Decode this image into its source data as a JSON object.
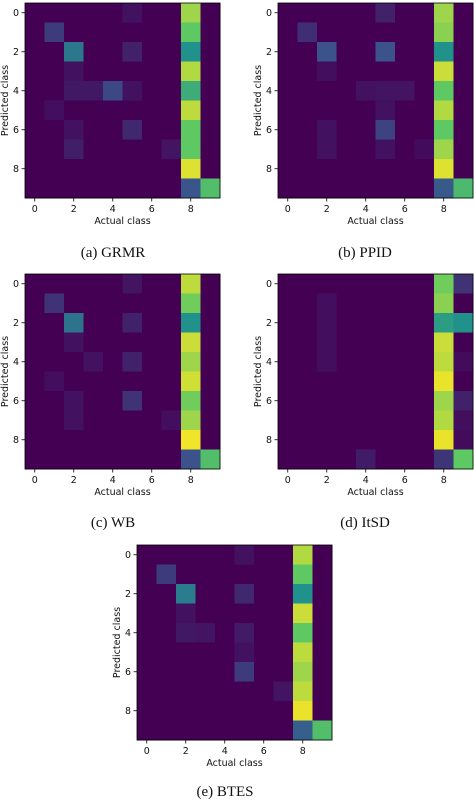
{
  "chart_data": [
    {
      "type": "heatmap",
      "caption": "(a) GRMR",
      "xlabel": "Actual class",
      "ylabel": "Predicted class",
      "x_ticks": [
        "0",
        "2",
        "4",
        "6",
        "8"
      ],
      "y_ticks": [
        "0",
        "2",
        "4",
        "6",
        "8"
      ],
      "scale": [
        0,
        1
      ],
      "colormap": "viridis",
      "matrix": [
        [
          0.0,
          0.0,
          0.0,
          0.0,
          0.0,
          0.05,
          0.0,
          0.0,
          0.85,
          0.0
        ],
        [
          0.0,
          0.18,
          0.0,
          0.0,
          0.0,
          0.0,
          0.0,
          0.0,
          0.75,
          0.0
        ],
        [
          0.0,
          0.0,
          0.4,
          0.0,
          0.0,
          0.1,
          0.0,
          0.0,
          0.5,
          0.0
        ],
        [
          0.0,
          0.0,
          0.05,
          0.0,
          0.0,
          0.0,
          0.0,
          0.0,
          0.88,
          0.0
        ],
        [
          0.0,
          0.0,
          0.07,
          0.07,
          0.22,
          0.05,
          0.0,
          0.0,
          0.62,
          0.0
        ],
        [
          0.0,
          0.04,
          0.0,
          0.0,
          0.0,
          0.0,
          0.0,
          0.0,
          0.9,
          0.0
        ],
        [
          0.0,
          0.0,
          0.05,
          0.0,
          0.0,
          0.12,
          0.0,
          0.0,
          0.75,
          0.0
        ],
        [
          0.0,
          0.0,
          0.09,
          0.0,
          0.0,
          0.0,
          0.0,
          0.06,
          0.75,
          0.0
        ],
        [
          0.0,
          0.0,
          0.0,
          0.0,
          0.0,
          0.0,
          0.0,
          0.0,
          0.95,
          0.0
        ],
        [
          0.0,
          0.0,
          0.0,
          0.0,
          0.0,
          0.0,
          0.0,
          0.0,
          0.26,
          0.7
        ]
      ]
    },
    {
      "type": "heatmap",
      "caption": "(b) PPID",
      "xlabel": "Actual class",
      "ylabel": "Predicted class",
      "x_ticks": [
        "0",
        "2",
        "4",
        "6",
        "8"
      ],
      "y_ticks": [
        "0",
        "2",
        "4",
        "6",
        "8"
      ],
      "scale": [
        0,
        1
      ],
      "colormap": "viridis",
      "matrix": [
        [
          0.0,
          0.0,
          0.0,
          0.0,
          0.0,
          0.1,
          0.0,
          0.0,
          0.85,
          0.0
        ],
        [
          0.0,
          0.14,
          0.0,
          0.0,
          0.0,
          0.0,
          0.0,
          0.0,
          0.82,
          0.0
        ],
        [
          0.0,
          0.0,
          0.25,
          0.0,
          0.0,
          0.25,
          0.0,
          0.0,
          0.5,
          0.0
        ],
        [
          0.0,
          0.0,
          0.04,
          0.0,
          0.0,
          0.0,
          0.0,
          0.0,
          0.92,
          0.0
        ],
        [
          0.0,
          0.0,
          0.0,
          0.0,
          0.05,
          0.06,
          0.06,
          0.0,
          0.75,
          0.0
        ],
        [
          0.0,
          0.0,
          0.0,
          0.0,
          0.0,
          0.05,
          0.0,
          0.0,
          0.88,
          0.0
        ],
        [
          0.0,
          0.0,
          0.05,
          0.0,
          0.0,
          0.2,
          0.0,
          0.0,
          0.75,
          0.0
        ],
        [
          0.0,
          0.0,
          0.05,
          0.0,
          0.0,
          0.05,
          0.0,
          0.03,
          0.85,
          0.0
        ],
        [
          0.0,
          0.0,
          0.0,
          0.0,
          0.0,
          0.0,
          0.0,
          0.0,
          0.95,
          0.0
        ],
        [
          0.0,
          0.0,
          0.0,
          0.0,
          0.0,
          0.0,
          0.0,
          0.0,
          0.28,
          0.68
        ]
      ]
    },
    {
      "type": "heatmap",
      "caption": "(c) WB",
      "xlabel": "Actual class",
      "ylabel": "Predicted class",
      "x_ticks": [
        "0",
        "2",
        "4",
        "6",
        "8"
      ],
      "y_ticks": [
        "0",
        "2",
        "4",
        "6",
        "8"
      ],
      "scale": [
        0,
        1
      ],
      "colormap": "viridis",
      "matrix": [
        [
          0.0,
          0.0,
          0.0,
          0.0,
          0.0,
          0.06,
          0.0,
          0.0,
          0.9,
          0.0
        ],
        [
          0.0,
          0.15,
          0.0,
          0.0,
          0.0,
          0.0,
          0.0,
          0.0,
          0.78,
          0.0
        ],
        [
          0.0,
          0.0,
          0.38,
          0.0,
          0.0,
          0.1,
          0.0,
          0.0,
          0.5,
          0.0
        ],
        [
          0.0,
          0.0,
          0.05,
          0.0,
          0.0,
          0.0,
          0.0,
          0.0,
          0.92,
          0.0
        ],
        [
          0.0,
          0.0,
          0.0,
          0.05,
          0.0,
          0.1,
          0.0,
          0.0,
          0.85,
          0.0
        ],
        [
          0.0,
          0.04,
          0.0,
          0.0,
          0.0,
          0.0,
          0.0,
          0.0,
          0.93,
          0.0
        ],
        [
          0.0,
          0.0,
          0.05,
          0.0,
          0.0,
          0.15,
          0.0,
          0.0,
          0.78,
          0.0
        ],
        [
          0.0,
          0.0,
          0.05,
          0.0,
          0.0,
          0.0,
          0.0,
          0.04,
          0.85,
          0.0
        ],
        [
          0.0,
          0.0,
          0.0,
          0.0,
          0.0,
          0.0,
          0.0,
          0.0,
          0.98,
          0.0
        ],
        [
          0.0,
          0.0,
          0.0,
          0.0,
          0.0,
          0.0,
          0.0,
          0.0,
          0.25,
          0.7
        ]
      ]
    },
    {
      "type": "heatmap",
      "caption": "(d) ItSD",
      "xlabel": "Actual class",
      "ylabel": "Predicted class",
      "x_ticks": [
        "0",
        "2",
        "4",
        "6",
        "8"
      ],
      "y_ticks": [
        "0",
        "2",
        "4",
        "6",
        "8"
      ],
      "scale": [
        0,
        1
      ],
      "colormap": "viridis",
      "matrix": [
        [
          0.0,
          0.0,
          0.0,
          0.0,
          0.0,
          0.0,
          0.0,
          0.0,
          0.78,
          0.15
        ],
        [
          0.0,
          0.0,
          0.04,
          0.0,
          0.0,
          0.0,
          0.0,
          0.0,
          0.82,
          0.0
        ],
        [
          0.0,
          0.0,
          0.04,
          0.0,
          0.0,
          0.0,
          0.0,
          0.0,
          0.55,
          0.5
        ],
        [
          0.0,
          0.0,
          0.04,
          0.0,
          0.0,
          0.0,
          0.0,
          0.0,
          0.92,
          0.0
        ],
        [
          0.0,
          0.0,
          0.04,
          0.0,
          0.0,
          0.0,
          0.0,
          0.0,
          0.9,
          0.03
        ],
        [
          0.0,
          0.0,
          0.0,
          0.0,
          0.0,
          0.0,
          0.0,
          0.0,
          0.97,
          0.0
        ],
        [
          0.0,
          0.0,
          0.0,
          0.0,
          0.0,
          0.0,
          0.0,
          0.0,
          0.85,
          0.1
        ],
        [
          0.0,
          0.0,
          0.0,
          0.0,
          0.0,
          0.0,
          0.0,
          0.0,
          0.88,
          0.04
        ],
        [
          0.0,
          0.0,
          0.0,
          0.0,
          0.0,
          0.0,
          0.0,
          0.0,
          0.97,
          0.03
        ],
        [
          0.0,
          0.0,
          0.0,
          0.0,
          0.08,
          0.0,
          0.0,
          0.0,
          0.16,
          0.75
        ]
      ]
    },
    {
      "type": "heatmap",
      "caption": "(e) BTES",
      "xlabel": "Actual class",
      "ylabel": "Predicted class",
      "x_ticks": [
        "0",
        "2",
        "4",
        "6",
        "8"
      ],
      "y_ticks": [
        "0",
        "2",
        "4",
        "6",
        "8"
      ],
      "scale": [
        0,
        1
      ],
      "colormap": "viridis",
      "matrix": [
        [
          0.0,
          0.0,
          0.0,
          0.0,
          0.0,
          0.05,
          0.0,
          0.0,
          0.88,
          0.0
        ],
        [
          0.0,
          0.18,
          0.0,
          0.0,
          0.0,
          0.0,
          0.0,
          0.0,
          0.75,
          0.0
        ],
        [
          0.0,
          0.0,
          0.42,
          0.0,
          0.0,
          0.12,
          0.0,
          0.0,
          0.5,
          0.0
        ],
        [
          0.0,
          0.0,
          0.05,
          0.0,
          0.0,
          0.0,
          0.0,
          0.0,
          0.92,
          0.0
        ],
        [
          0.0,
          0.0,
          0.07,
          0.06,
          0.0,
          0.08,
          0.0,
          0.0,
          0.75,
          0.0
        ],
        [
          0.0,
          0.0,
          0.0,
          0.0,
          0.0,
          0.05,
          0.0,
          0.0,
          0.9,
          0.0
        ],
        [
          0.0,
          0.0,
          0.0,
          0.0,
          0.0,
          0.18,
          0.0,
          0.0,
          0.85,
          0.0
        ],
        [
          0.0,
          0.0,
          0.0,
          0.0,
          0.0,
          0.0,
          0.0,
          0.06,
          0.9,
          0.0
        ],
        [
          0.0,
          0.0,
          0.0,
          0.0,
          0.0,
          0.0,
          0.0,
          0.0,
          0.97,
          0.0
        ],
        [
          0.0,
          0.0,
          0.0,
          0.0,
          0.0,
          0.0,
          0.0,
          0.0,
          0.3,
          0.7
        ]
      ]
    }
  ]
}
